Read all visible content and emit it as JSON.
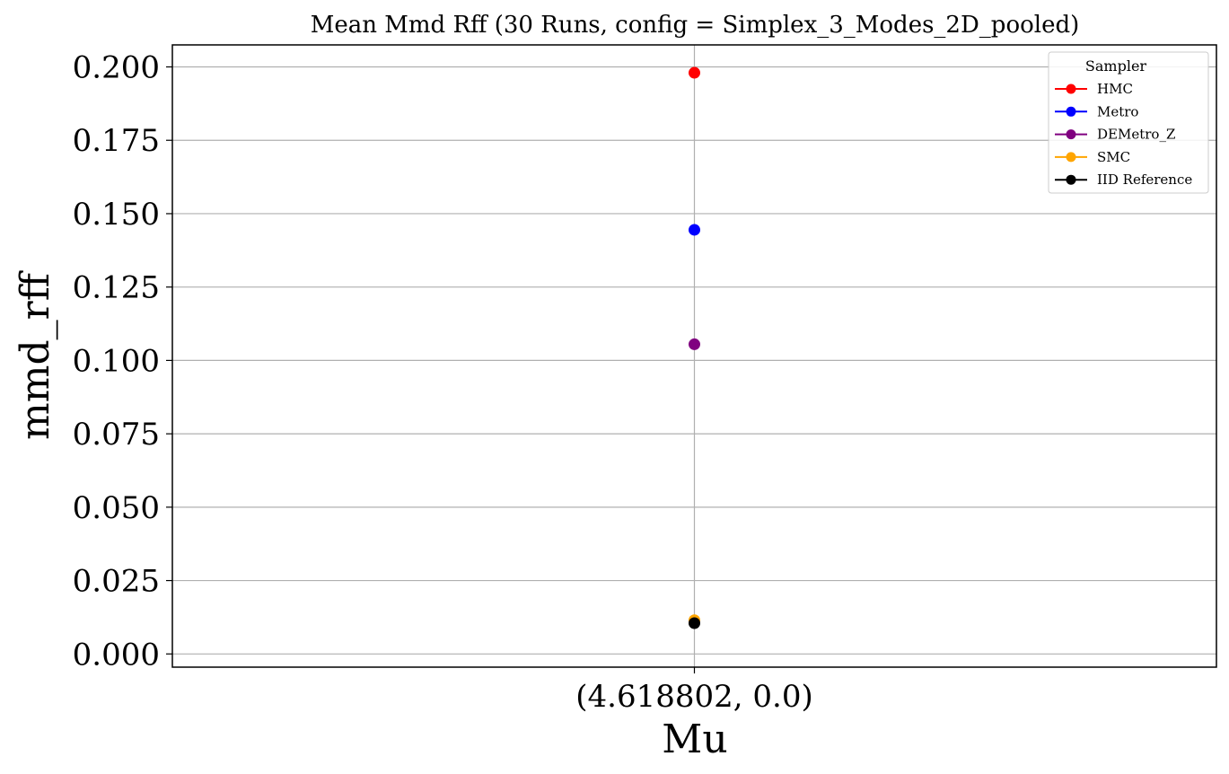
{
  "chart_data": {
    "type": "scatter",
    "title": "Mean Mmd Rff (30 Runs, config = Simplex_3_Modes_2D_pooled)",
    "xlabel": "Mu",
    "ylabel": "mmd_rff",
    "categories": [
      "(4.618802, 0.0)"
    ],
    "ylim": [
      -0.0045,
      0.2075
    ],
    "yticks": [
      "0.000",
      "0.025",
      "0.050",
      "0.075",
      "0.100",
      "0.125",
      "0.150",
      "0.175",
      "0.200"
    ],
    "grid": true,
    "legend": {
      "title": "Sampler",
      "placement": "top-right"
    },
    "series": [
      {
        "name": "HMC",
        "color": "#ff0000",
        "values": [
          0.198
        ]
      },
      {
        "name": "Metro",
        "color": "#0000ff",
        "values": [
          0.1445
        ]
      },
      {
        "name": "DEMetro_Z",
        "color": "#800080",
        "values": [
          0.1055
        ]
      },
      {
        "name": "SMC",
        "color": "#ffa500",
        "values": [
          0.0115
        ]
      },
      {
        "name": "IID Reference",
        "color": "#000000",
        "values": [
          0.0105
        ]
      }
    ]
  }
}
